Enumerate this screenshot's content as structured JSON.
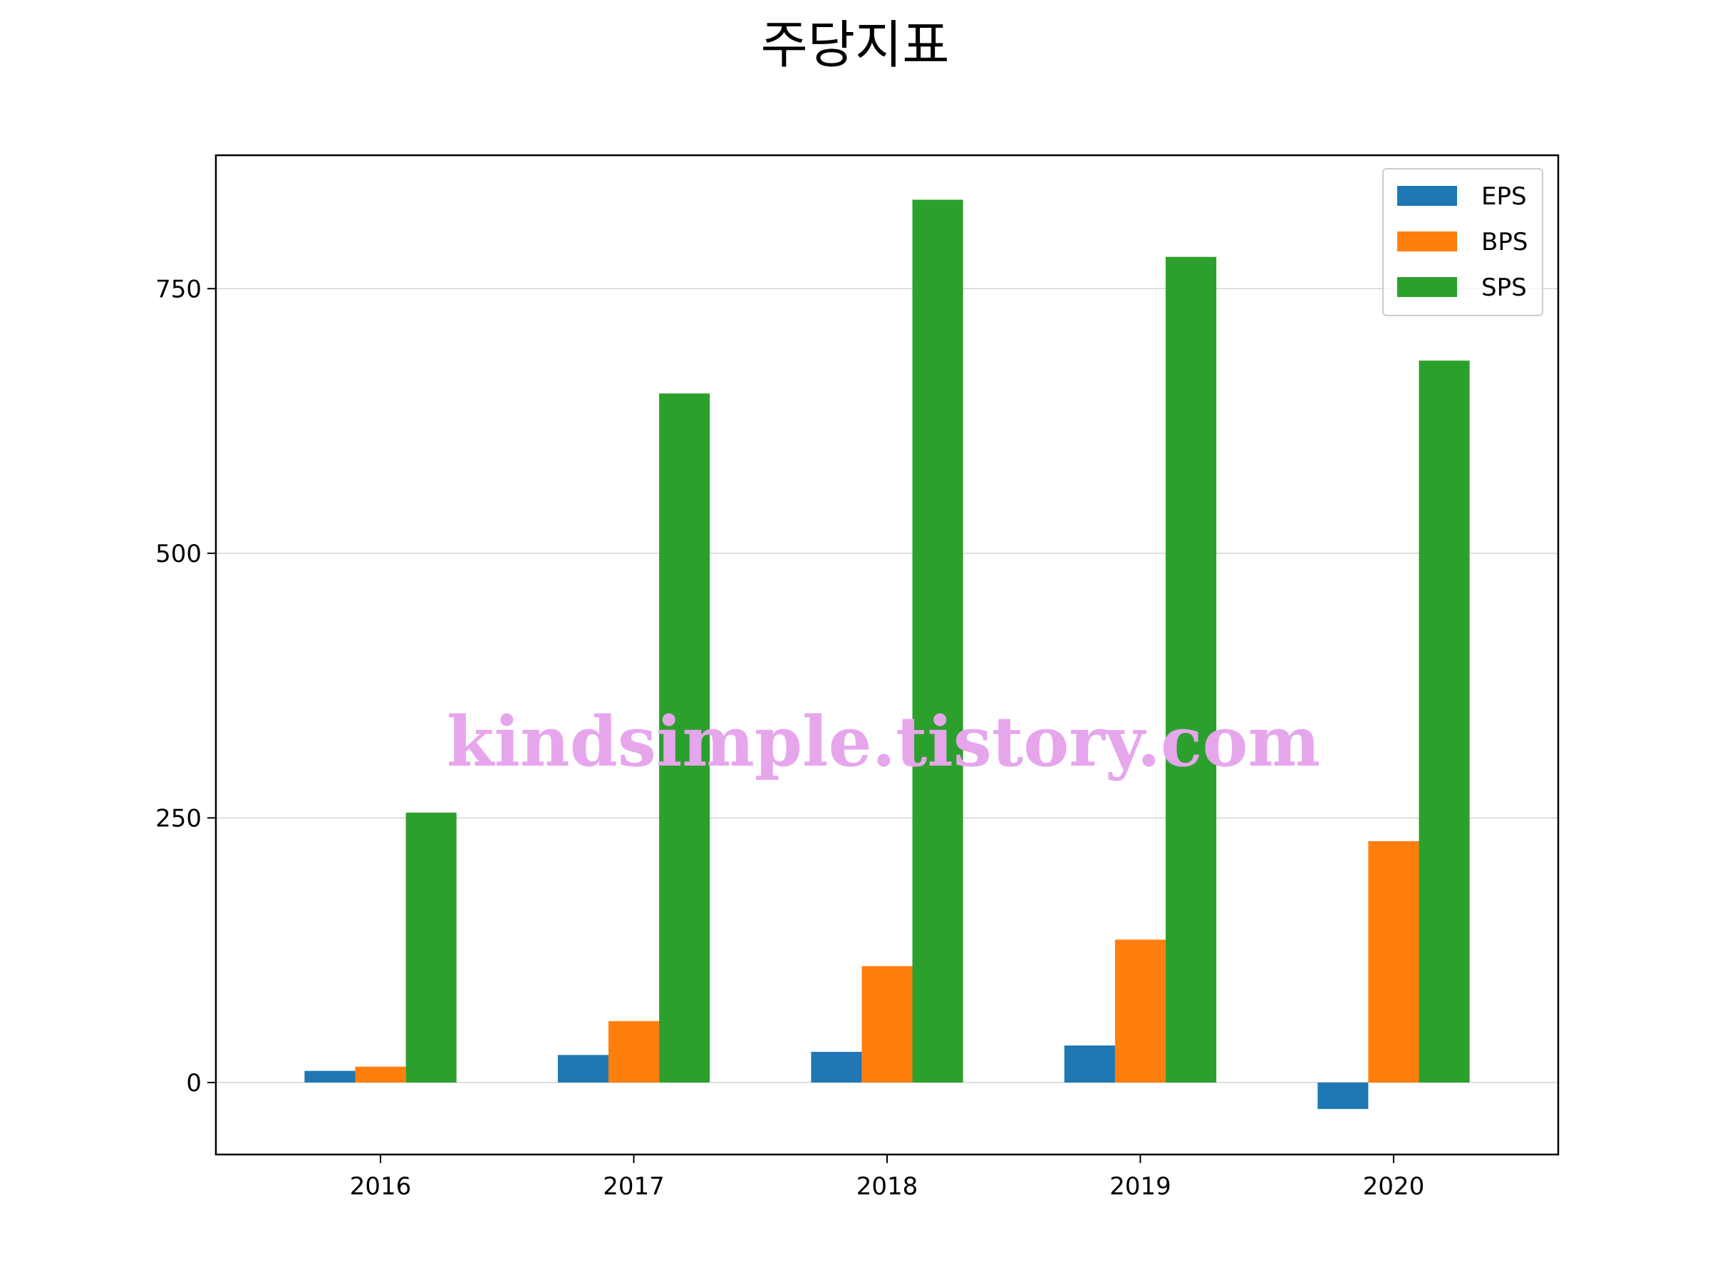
{
  "chart_data": {
    "type": "bar",
    "title": "주당지표",
    "xlabel": "",
    "ylabel": "",
    "categories": [
      "2016",
      "2017",
      "2018",
      "2019",
      "2020"
    ],
    "series": [
      {
        "name": "EPS",
        "color": "#1f77b4",
        "values": [
          11,
          26,
          29,
          35,
          -25
        ]
      },
      {
        "name": "BPS",
        "color": "#ff7f0e",
        "values": [
          15,
          58,
          110,
          135,
          228
        ]
      },
      {
        "name": "SPS",
        "color": "#2ca02c",
        "values": [
          255,
          651,
          834,
          780,
          682
        ]
      }
    ],
    "ylim": [
      -68,
      876
    ],
    "yticks": [
      0,
      250,
      500,
      750
    ],
    "ytick_labels": [
      "0",
      "250",
      "500",
      "750"
    ],
    "grid": "horizontal",
    "legend_position": "top-right"
  },
  "watermark": "kindsimple.tistory.com"
}
